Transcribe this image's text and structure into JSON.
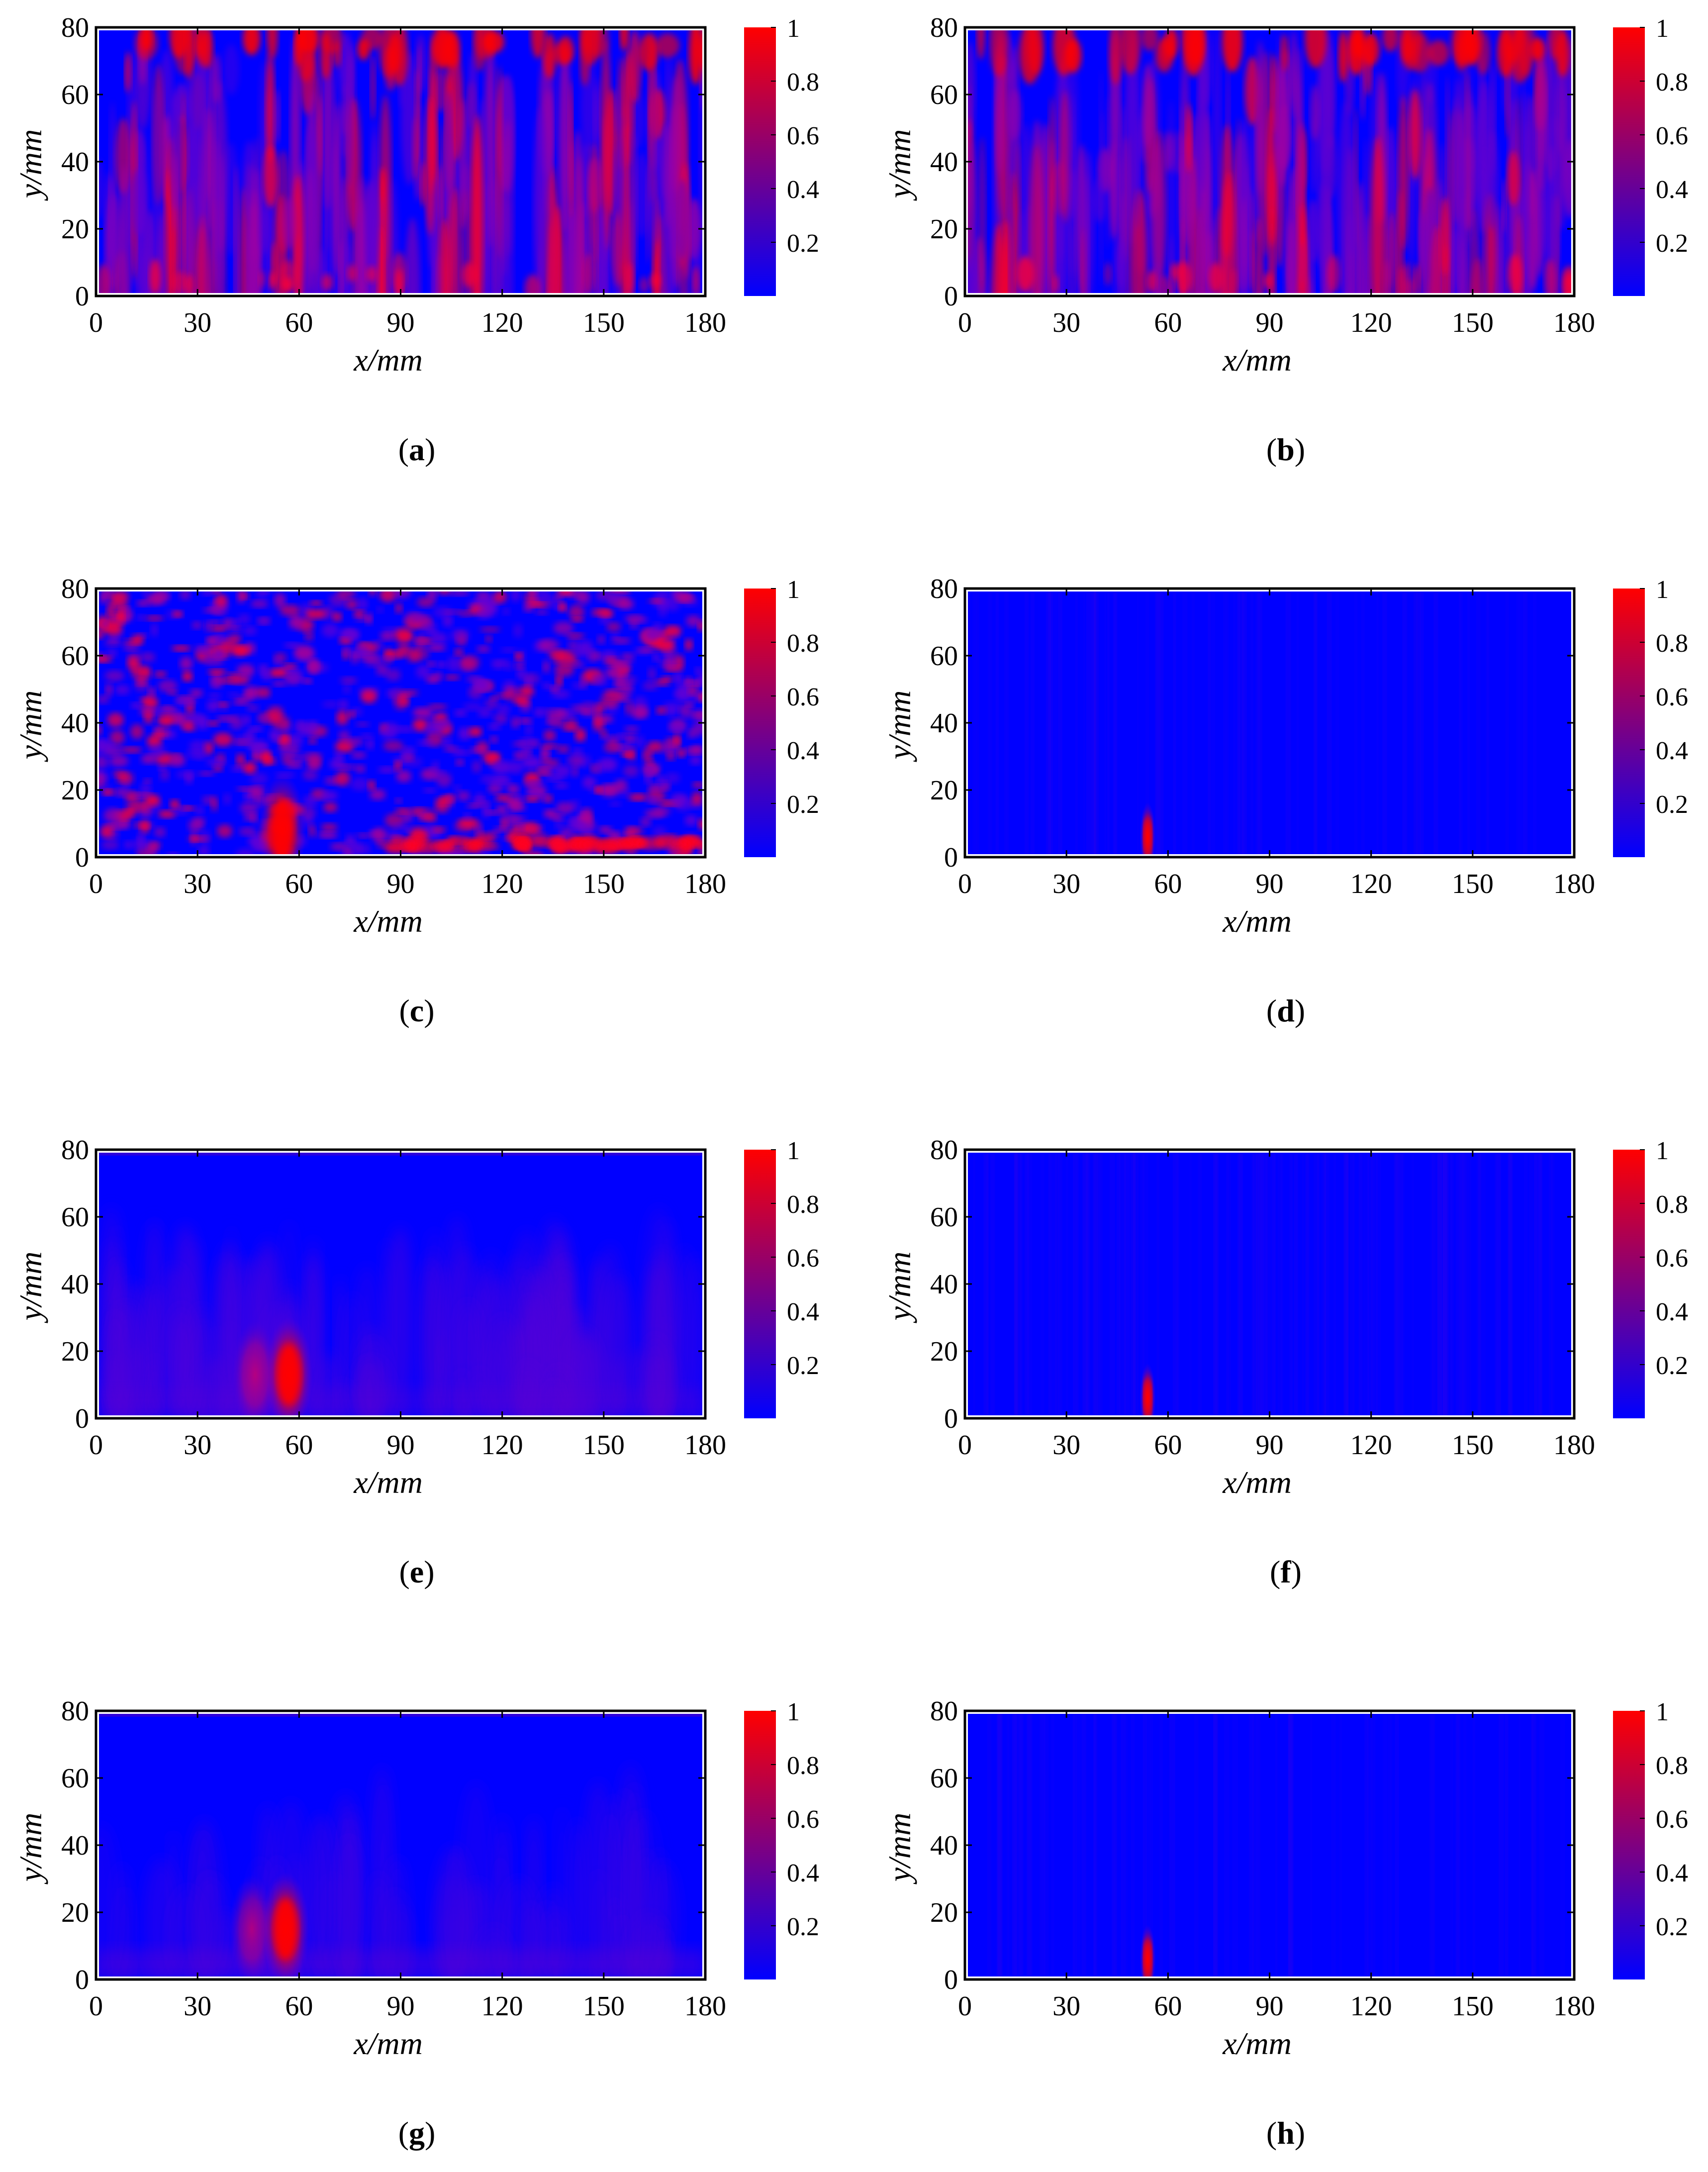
{
  "chart_data": [
    {
      "panel": "a",
      "type": "heatmap",
      "pattern": "dense",
      "xlabel": "x/mm",
      "ylabel": "y/mm",
      "xlim": [
        0,
        180
      ],
      "ylim": [
        0,
        80
      ],
      "xticks": [
        0,
        30,
        60,
        90,
        120,
        150,
        180
      ],
      "yticks": [
        0,
        20,
        40,
        60,
        80
      ],
      "colorbar": {
        "ticks": [
          0.2,
          0.4,
          0.6,
          0.8,
          1
        ],
        "min_color": "#0000ff",
        "max_color": "#ff0000"
      }
    },
    {
      "panel": "b",
      "type": "heatmap",
      "pattern": "dense",
      "xlabel": "x/mm",
      "ylabel": "y/mm",
      "xlim": [
        0,
        180
      ],
      "ylim": [
        0,
        80
      ],
      "xticks": [
        0,
        30,
        60,
        90,
        120,
        150,
        180
      ],
      "yticks": [
        0,
        20,
        40,
        60,
        80
      ],
      "colorbar": {
        "ticks": [
          0.2,
          0.4,
          0.6,
          0.8,
          1
        ],
        "min_color": "#0000ff",
        "max_color": "#ff0000"
      }
    },
    {
      "panel": "c",
      "type": "heatmap",
      "pattern": "speckle",
      "hotspot": {
        "x": 55,
        "y": 8
      },
      "xlabel": "x/mm",
      "ylabel": "y/mm",
      "xlim": [
        0,
        180
      ],
      "ylim": [
        0,
        80
      ],
      "xticks": [
        0,
        30,
        60,
        90,
        120,
        150,
        180
      ],
      "yticks": [
        0,
        20,
        40,
        60,
        80
      ],
      "colorbar": {
        "ticks": [
          0.2,
          0.4,
          0.6,
          0.8,
          1
        ],
        "min_color": "#0000ff",
        "max_color": "#ff0000"
      }
    },
    {
      "panel": "d",
      "type": "heatmap",
      "pattern": "quiet",
      "hotspot": {
        "x": 54,
        "y": 6
      },
      "xlabel": "x/mm",
      "ylabel": "y/mm",
      "xlim": [
        0,
        180
      ],
      "ylim": [
        0,
        80
      ],
      "xticks": [
        0,
        30,
        60,
        90,
        120,
        150,
        180
      ],
      "yticks": [
        0,
        20,
        40,
        60,
        80
      ],
      "colorbar": {
        "ticks": [
          0.2,
          0.4,
          0.6,
          0.8,
          1
        ],
        "min_color": "#0000ff",
        "max_color": "#ff0000"
      }
    },
    {
      "panel": "e",
      "type": "heatmap",
      "pattern": "smooth",
      "hotspot": {
        "x": 57,
        "y": 13
      },
      "xlabel": "x/mm",
      "ylabel": "y/mm",
      "xlim": [
        0,
        180
      ],
      "ylim": [
        0,
        80
      ],
      "xticks": [
        0,
        30,
        60,
        90,
        120,
        150,
        180
      ],
      "yticks": [
        0,
        20,
        40,
        60,
        80
      ],
      "colorbar": {
        "ticks": [
          0.2,
          0.4,
          0.6,
          0.8,
          1
        ],
        "min_color": "#0000ff",
        "max_color": "#ff0000"
      }
    },
    {
      "panel": "f",
      "type": "heatmap",
      "pattern": "quiet-lines",
      "hotspot": {
        "x": 54,
        "y": 6
      },
      "xlabel": "x/mm",
      "ylabel": "y/mm",
      "xlim": [
        0,
        180
      ],
      "ylim": [
        0,
        80
      ],
      "xticks": [
        0,
        30,
        60,
        90,
        120,
        150,
        180
      ],
      "yticks": [
        0,
        20,
        40,
        60,
        80
      ],
      "colorbar": {
        "ticks": [
          0.2,
          0.4,
          0.6,
          0.8,
          1
        ],
        "min_color": "#0000ff",
        "max_color": "#ff0000"
      }
    },
    {
      "panel": "g",
      "type": "heatmap",
      "pattern": "smooth-faint",
      "hotspot": {
        "x": 56,
        "y": 15
      },
      "xlabel": "x/mm",
      "ylabel": "y/mm",
      "xlim": [
        0,
        180
      ],
      "ylim": [
        0,
        80
      ],
      "xticks": [
        0,
        30,
        60,
        90,
        120,
        150,
        180
      ],
      "yticks": [
        0,
        20,
        40,
        60,
        80
      ],
      "colorbar": {
        "ticks": [
          0.2,
          0.4,
          0.6,
          0.8,
          1
        ],
        "min_color": "#0000ff",
        "max_color": "#ff0000"
      }
    },
    {
      "panel": "h",
      "type": "heatmap",
      "pattern": "quiet",
      "hotspot": {
        "x": 54,
        "y": 6
      },
      "xlabel": "x/mm",
      "ylabel": "y/mm",
      "xlim": [
        0,
        180
      ],
      "ylim": [
        0,
        80
      ],
      "xticks": [
        0,
        30,
        60,
        90,
        120,
        150,
        180
      ],
      "yticks": [
        0,
        20,
        40,
        60,
        80
      ],
      "colorbar": {
        "ticks": [
          0.2,
          0.4,
          0.6,
          0.8,
          1
        ],
        "min_color": "#0000ff",
        "max_color": "#ff0000"
      }
    }
  ],
  "panel_labels": [
    "a",
    "b",
    "c",
    "d",
    "e",
    "f",
    "g",
    "h"
  ]
}
